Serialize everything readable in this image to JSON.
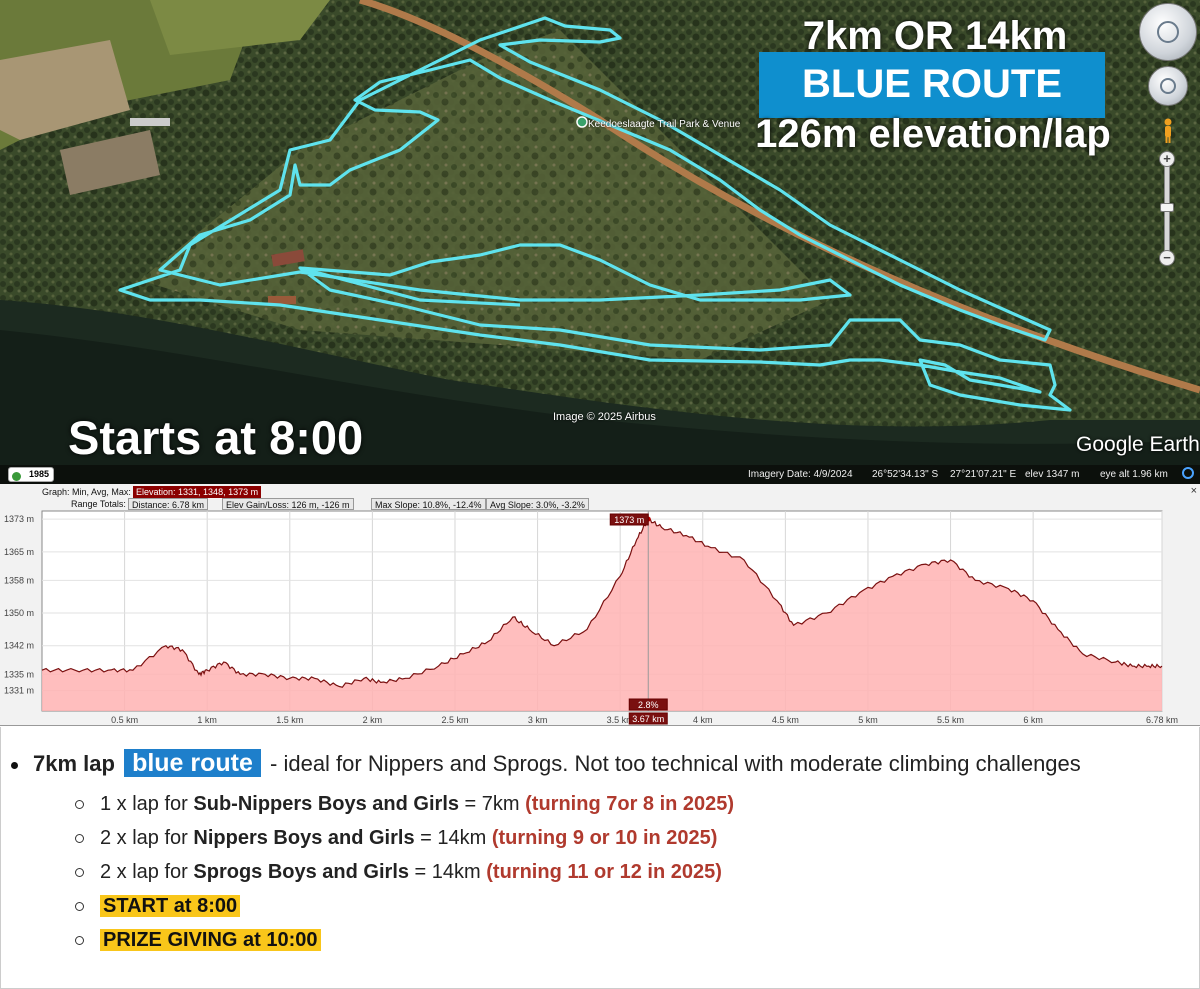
{
  "map": {
    "overlay_distance": "7km OR 14km",
    "overlay_route": "BLUE ROUTE",
    "overlay_elevation": "126m elevation/lap",
    "overlay_start": "Starts at 8:00",
    "venue_label": "Keedoeslaagte Trail Park & Venue",
    "copyright": "Image © 2025 Airbus",
    "logo": "Google Earth",
    "route_color": "#5fe3ee",
    "status": {
      "year": "1985",
      "imagery_date": "Imagery Date: 4/9/2024",
      "lat": "26°52'34.13\" S",
      "lon": "27°21'07.21\" E",
      "elev": "elev  1347 m",
      "eye_alt": "eye alt    1.96 km"
    },
    "icons": [
      "look-around-control-icon",
      "move-control-icon",
      "pegman-icon",
      "zoom-in-icon",
      "zoom-out-icon"
    ]
  },
  "profile": {
    "graph_label": "Graph: Min, Avg, Max:",
    "elevation_stats": "Elevation: 1331, 1348, 1373 m",
    "range_label": "Range Totals:",
    "distance": "Distance: 6.78 km",
    "gain_loss": "Elev Gain/Loss: 126 m, -126 m",
    "max_slope": "Max Slope: 10.8%, -12.4%",
    "avg_slope": "Avg Slope: 3.0%, -3.2%",
    "close": "×"
  },
  "chart_data": {
    "type": "area",
    "y_unit": "m",
    "x_unit": "km",
    "ylim": [
      1326,
      1375
    ],
    "xlim": [
      0,
      6.78
    ],
    "y_ticks": [
      "1373 m",
      "1365 m",
      "1358 m",
      "1350 m",
      "1342 m",
      "1335 m",
      "1331 m"
    ],
    "y_tick_values": [
      1373,
      1365,
      1358,
      1350,
      1342,
      1335,
      1331
    ],
    "x_ticks": [
      "0.5 km",
      "1 km",
      "1.5 km",
      "2 km",
      "2.5 km",
      "3 km",
      "3.5 km",
      "4 km",
      "4.5 km",
      "5 km",
      "5.5 km",
      "6 km",
      "6.78 km"
    ],
    "x_tick_values": [
      0.5,
      1,
      1.5,
      2,
      2.5,
      3,
      3.5,
      4,
      4.5,
      5,
      5.5,
      6,
      6.78
    ],
    "cursor": {
      "x": 3.67,
      "x_label": "3.67 km",
      "y_label": "1373 m",
      "slope_label": "2.8%"
    },
    "grid": true,
    "fill_color": "#ffb3b3",
    "line_color": "#7a1010",
    "x": [
      0,
      0.2,
      0.4,
      0.55,
      0.75,
      0.85,
      0.95,
      1.0,
      1.1,
      1.2,
      1.35,
      1.5,
      1.65,
      1.8,
      1.95,
      2.05,
      2.2,
      2.4,
      2.55,
      2.7,
      2.85,
      2.95,
      3.1,
      3.3,
      3.5,
      3.6,
      3.67,
      3.75,
      3.9,
      4.05,
      4.25,
      4.45,
      4.55,
      4.75,
      4.95,
      5.15,
      5.35,
      5.5,
      5.65,
      5.85,
      6.0,
      6.15,
      6.3,
      6.5,
      6.6,
      6.7,
      6.78
    ],
    "elevation": [
      1336,
      1336,
      1336,
      1336,
      1342,
      1341,
      1335,
      1336,
      1338,
      1335,
      1335,
      1334,
      1334,
      1332,
      1334,
      1333,
      1334,
      1337,
      1340,
      1343,
      1349,
      1346,
      1342,
      1346,
      1359,
      1368,
      1373,
      1371,
      1369,
      1366,
      1363,
      1353,
      1347,
      1350,
      1355,
      1359,
      1362,
      1363,
      1358,
      1356,
      1353,
      1346,
      1340,
      1338,
      1337,
      1337,
      1337
    ]
  },
  "notes": {
    "main_prefix": "7km lap",
    "main_badge": "blue route",
    "main_suffix": " - ideal for Nippers and Sprogs. Not too technical with moderate climbing challenges",
    "items": [
      {
        "prefix": "1 x lap for ",
        "bold": "Sub-Nippers Boys and Girls",
        "mid": " = 7km ",
        "red": "(turning 7or 8 in 2025)"
      },
      {
        "prefix": "2 x lap for ",
        "bold": "Nippers Boys and Girls",
        "mid": " = 14km ",
        "red": "(turning 9 or 10 in 2025)"
      },
      {
        "prefix": "2 x lap for ",
        "bold": "Sprogs Boys and Girls",
        "mid": " = 14km ",
        "red": "(turning 11 or 12 in 2025)"
      }
    ],
    "start": "START at 8:00",
    "prize": "PRIZE GIVING at 10:00"
  }
}
